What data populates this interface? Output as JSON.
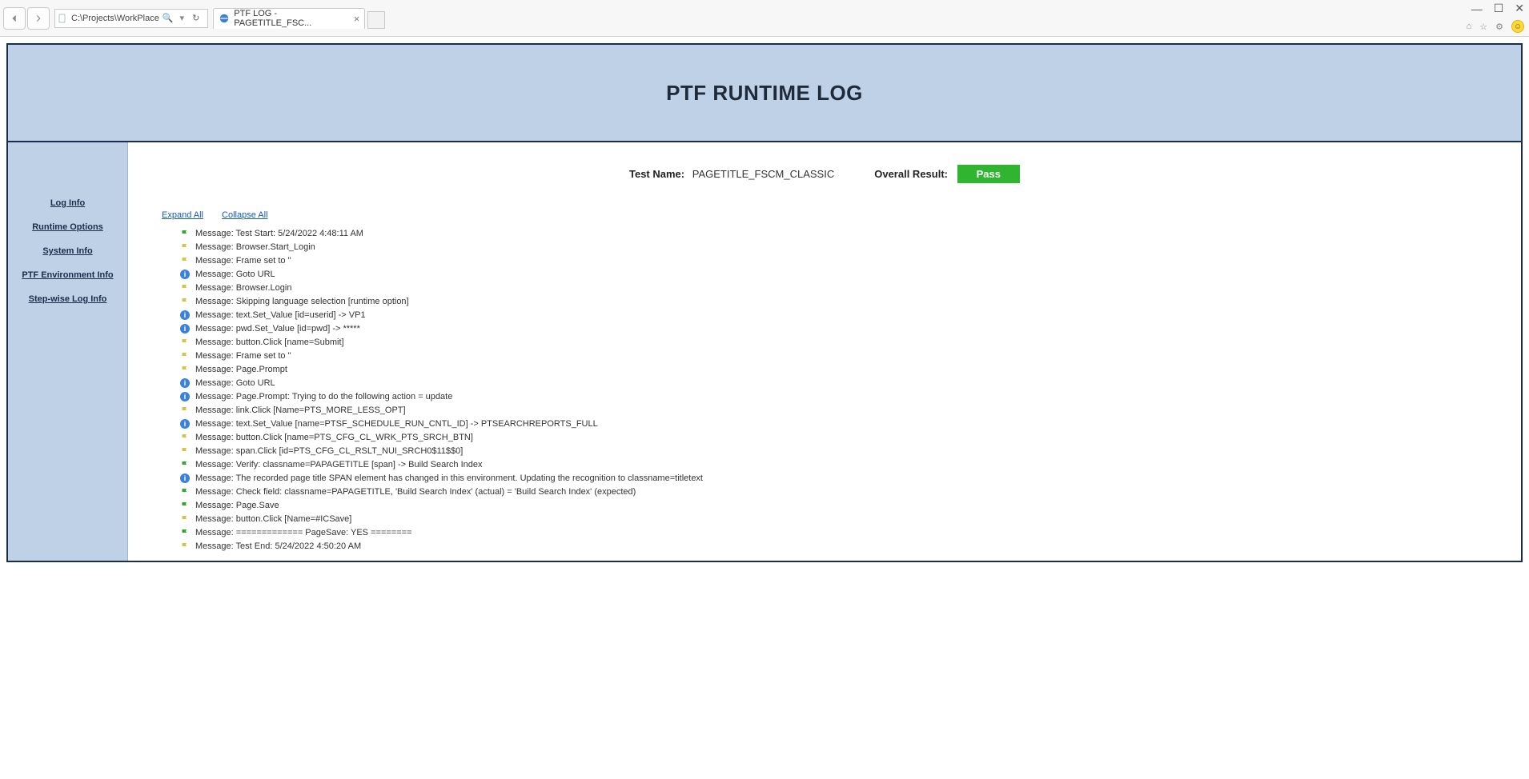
{
  "chrome": {
    "address": "C:\\Projects\\WorkPlace",
    "tab_title": "PTF LOG - PAGETITLE_FSC..."
  },
  "banner": {
    "title": "PTF RUNTIME LOG"
  },
  "sidebar": {
    "items": [
      {
        "label": "Log Info"
      },
      {
        "label": "Runtime Options"
      },
      {
        "label": "System Info"
      },
      {
        "label": "PTF Environment Info"
      },
      {
        "label": "Step-wise Log Info"
      }
    ]
  },
  "summary": {
    "test_name_label": "Test Name:",
    "test_name_value": "PAGETITLE_FSCM_CLASSIC",
    "result_label": "Overall Result:",
    "result_value": "Pass",
    "result_bg": "#2fb52f",
    "result_fg": "#ffffff"
  },
  "controls": {
    "expand": "Expand All",
    "collapse": "Collapse All"
  },
  "log": [
    {
      "icon": "flag-green",
      "text": "Message: Test Start: 5/24/2022 4:48:11 AM"
    },
    {
      "icon": "flag-yellow",
      "text": "Message: Browser.Start_Login"
    },
    {
      "icon": "flag-yellow",
      "text": "Message: Frame set to ''"
    },
    {
      "icon": "info",
      "text": "Message: Goto URL"
    },
    {
      "icon": "flag-yellow",
      "text": "Message: Browser.Login"
    },
    {
      "icon": "flag-yellow",
      "text": "Message: Skipping language selection [runtime option]"
    },
    {
      "icon": "info",
      "text": "Message: text.Set_Value [id=userid] -> VP1"
    },
    {
      "icon": "info",
      "text": "Message: pwd.Set_Value [id=pwd] -> *****"
    },
    {
      "icon": "flag-yellow",
      "text": "Message: button.Click [name=Submit]"
    },
    {
      "icon": "flag-yellow",
      "text": "Message: Frame set to ''"
    },
    {
      "icon": "flag-yellow",
      "text": "Message: Page.Prompt"
    },
    {
      "icon": "info",
      "text": "Message: Goto URL"
    },
    {
      "icon": "info",
      "text": "Message: Page.Prompt: Trying to do the following action = update"
    },
    {
      "icon": "flag-yellow",
      "text": "Message: link.Click [Name=PTS_MORE_LESS_OPT]"
    },
    {
      "icon": "info",
      "text": "Message: text.Set_Value [name=PTSF_SCHEDULE_RUN_CNTL_ID] -> PTSEARCHREPORTS_FULL"
    },
    {
      "icon": "flag-yellow",
      "text": "Message: button.Click [name=PTS_CFG_CL_WRK_PTS_SRCH_BTN]"
    },
    {
      "icon": "flag-yellow",
      "text": "Message: span.Click [id=PTS_CFG_CL_RSLT_NUI_SRCH0$11$$0]"
    },
    {
      "icon": "flag-green",
      "text": "Message: Verify: classname=PAPAGETITLE [span] -> Build Search Index"
    },
    {
      "icon": "info",
      "text": "Message: The recorded page title SPAN element has changed in this environment. Updating the recognition to classname=titletext"
    },
    {
      "icon": "flag-green",
      "text": "Message: Check field: classname=PAPAGETITLE, 'Build Search Index' (actual) = 'Build Search Index' (expected)"
    },
    {
      "icon": "flag-green",
      "text": "Message: Page.Save"
    },
    {
      "icon": "flag-yellow",
      "text": "Message: button.Click [Name=#ICSave]"
    },
    {
      "icon": "flag-green",
      "text": "Message: ============= PageSave: YES ========"
    },
    {
      "icon": "flag-yellow",
      "text": "Message: Test End: 5/24/2022 4:50:20 AM"
    }
  ]
}
